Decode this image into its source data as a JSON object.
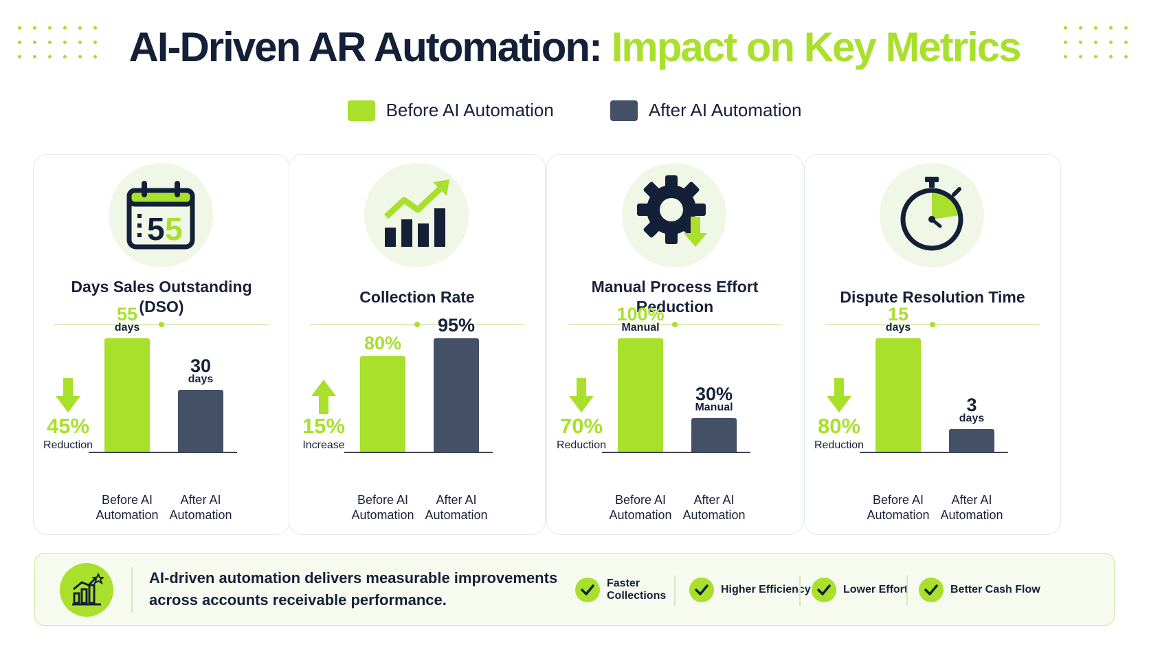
{
  "title": {
    "part1": "AI-Driven AR Automation:",
    "part2": "Impact on Key Metrics"
  },
  "colors": {
    "before": "#a8e02c",
    "after": "#445066",
    "accent": "#a8e02c",
    "dark": "#142038"
  },
  "legend": {
    "before": "Before AI Automation",
    "after": "After AI Automation"
  },
  "chart_data": [
    {
      "type": "bar",
      "title": "Days Sales Outstanding (DSO)",
      "categories": [
        "Before AI Automation",
        "After AI Automation"
      ],
      "values": [
        55,
        30
      ],
      "value_labels": [
        "55",
        "30"
      ],
      "units": [
        "days",
        "days"
      ],
      "change": {
        "value": "45%",
        "direction": "down",
        "word": "Reduction"
      },
      "icon": "calendar-icon"
    },
    {
      "type": "bar",
      "title": "Collection Rate",
      "categories": [
        "Before AI Automation",
        "After AI Automation"
      ],
      "values": [
        80,
        95
      ],
      "value_labels": [
        "80%",
        "95%"
      ],
      "units": [
        "",
        ""
      ],
      "change": {
        "value": "15%",
        "direction": "up",
        "word": "Increase"
      },
      "icon": "growth-chart-icon"
    },
    {
      "type": "bar",
      "title": "Manual Process Effort Reduction",
      "categories": [
        "Before AI Automation",
        "After AI Automation"
      ],
      "values": [
        100,
        30
      ],
      "value_labels": [
        "100%",
        "30%"
      ],
      "units": [
        "Manual",
        "Manual"
      ],
      "change": {
        "value": "70%",
        "direction": "down",
        "word": "Reduction"
      },
      "icon": "gear-icon"
    },
    {
      "type": "bar",
      "title": "Dispute Resolution Time",
      "categories": [
        "Before AI Automation",
        "After AI Automation"
      ],
      "values": [
        15,
        3
      ],
      "value_labels": [
        "15",
        "3"
      ],
      "units": [
        "days",
        "days"
      ],
      "change": {
        "value": "80%",
        "direction": "down",
        "word": "Reduction"
      },
      "icon": "stopwatch-icon"
    }
  ],
  "footer": {
    "message": "AI-driven automation delivers measurable improvements across accounts receivable performance.",
    "benefits": [
      "Faster Collections",
      "Higher Efficiency",
      "Lower Effort",
      "Better Cash Flow"
    ]
  }
}
